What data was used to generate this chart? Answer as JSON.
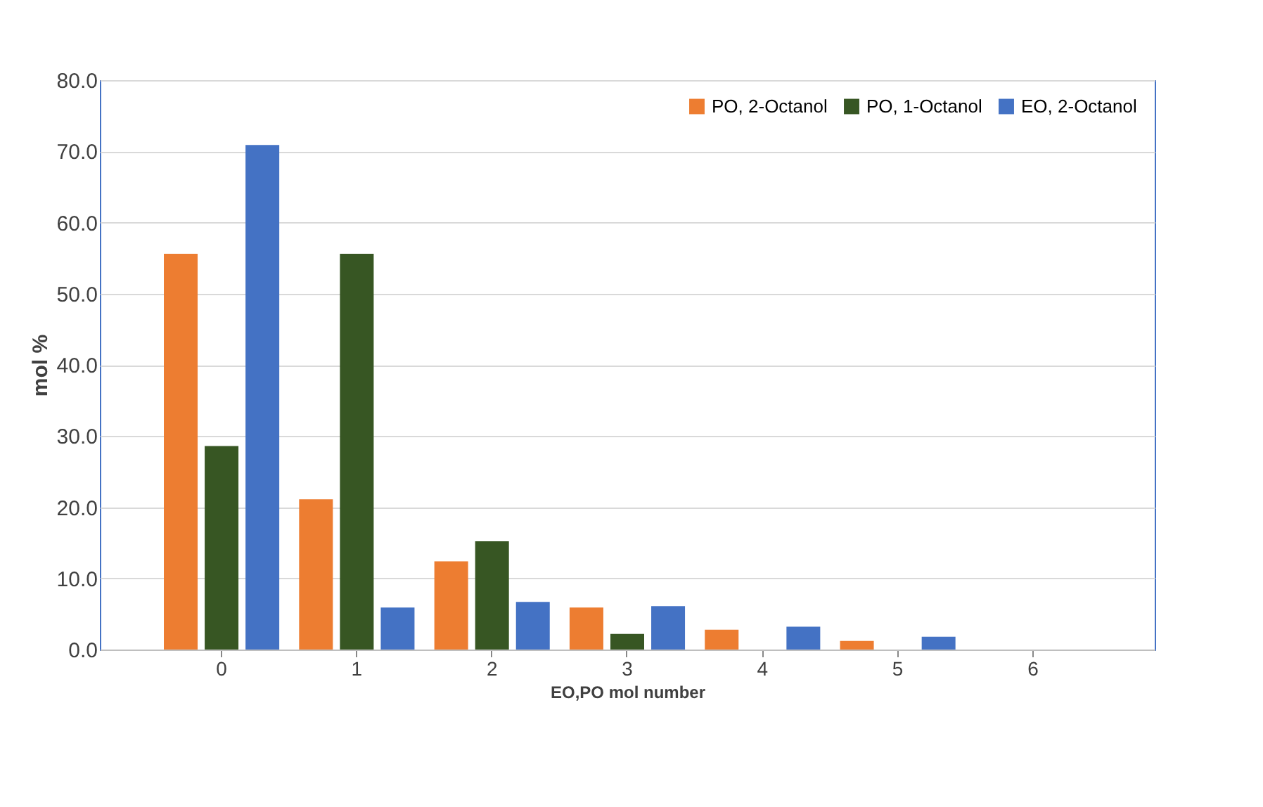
{
  "chart_data": {
    "type": "bar",
    "xlabel": "EO,PO mol number",
    "ylabel": "mol %",
    "categories": [
      "0",
      "1",
      "2",
      "3",
      "4",
      "5",
      "6"
    ],
    "series": [
      {
        "name": "PO, 2-Octanol",
        "color": "#ed7d31",
        "values": [
          55.6,
          21.1,
          12.4,
          5.9,
          2.8,
          1.2,
          null
        ]
      },
      {
        "name": "PO, 1-Octanol",
        "color": "#375623",
        "values": [
          28.6,
          55.6,
          15.2,
          2.2,
          null,
          null,
          null
        ]
      },
      {
        "name": "EO, 2-Octanol",
        "color": "#4472c4",
        "values": [
          70.9,
          5.9,
          6.7,
          6.1,
          3.2,
          1.8,
          null
        ]
      }
    ],
    "ylim": [
      0,
      80
    ],
    "yticks": [
      {
        "value": 0,
        "label": "0.0"
      },
      {
        "value": 10,
        "label": "10.0"
      },
      {
        "value": 20,
        "label": "20.0"
      },
      {
        "value": 30,
        "label": "30.0"
      },
      {
        "value": 40,
        "label": "40.0"
      },
      {
        "value": 50,
        "label": "50.0"
      },
      {
        "value": 60,
        "label": "60.0"
      },
      {
        "value": 70,
        "label": "70.0"
      },
      {
        "value": 80,
        "label": "80.0"
      }
    ],
    "grid": "y",
    "legend": "top right"
  }
}
